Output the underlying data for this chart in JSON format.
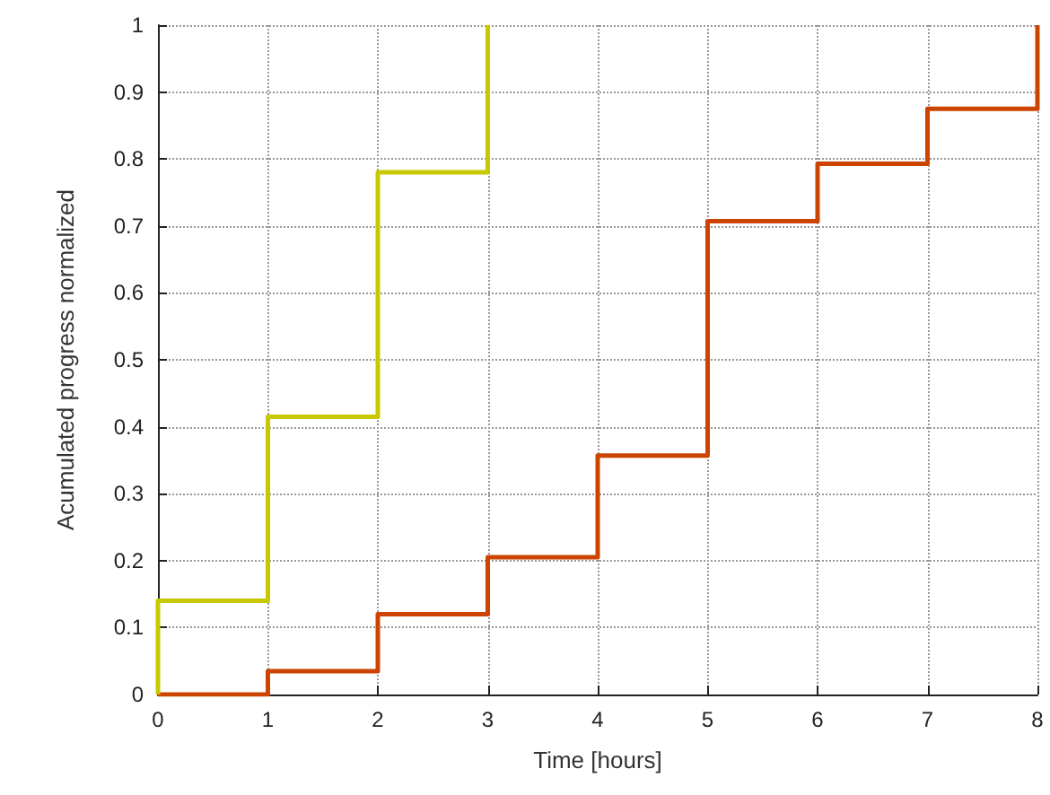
{
  "chart_data": {
    "type": "step",
    "xlabel": "Time [hours]",
    "ylabel": "Acumulated progress normalized",
    "series": [
      {
        "color": "#cc4400",
        "x": [
          0,
          1,
          2,
          3,
          4,
          5,
          6,
          7,
          8
        ],
        "values": [
          0,
          0.035,
          0.12,
          0.205,
          0.357,
          0.707,
          0.793,
          0.875,
          1
        ]
      },
      {
        "color": "#c8c800",
        "x": [
          0,
          0,
          1,
          2,
          3
        ],
        "values": [
          0,
          0.14,
          0.415,
          0.78,
          1
        ]
      }
    ],
    "xlim": [
      0,
      8
    ],
    "xticks": [
      0,
      1,
      2,
      3,
      4,
      5,
      6,
      7,
      8
    ],
    "ylim": [
      0,
      1
    ],
    "yticks": [
      0,
      0.1,
      0.2,
      0.3,
      0.4,
      0.5,
      0.6,
      0.7,
      0.8,
      0.9,
      1
    ],
    "grid": true,
    "marker": "none",
    "line_style": "solid"
  }
}
